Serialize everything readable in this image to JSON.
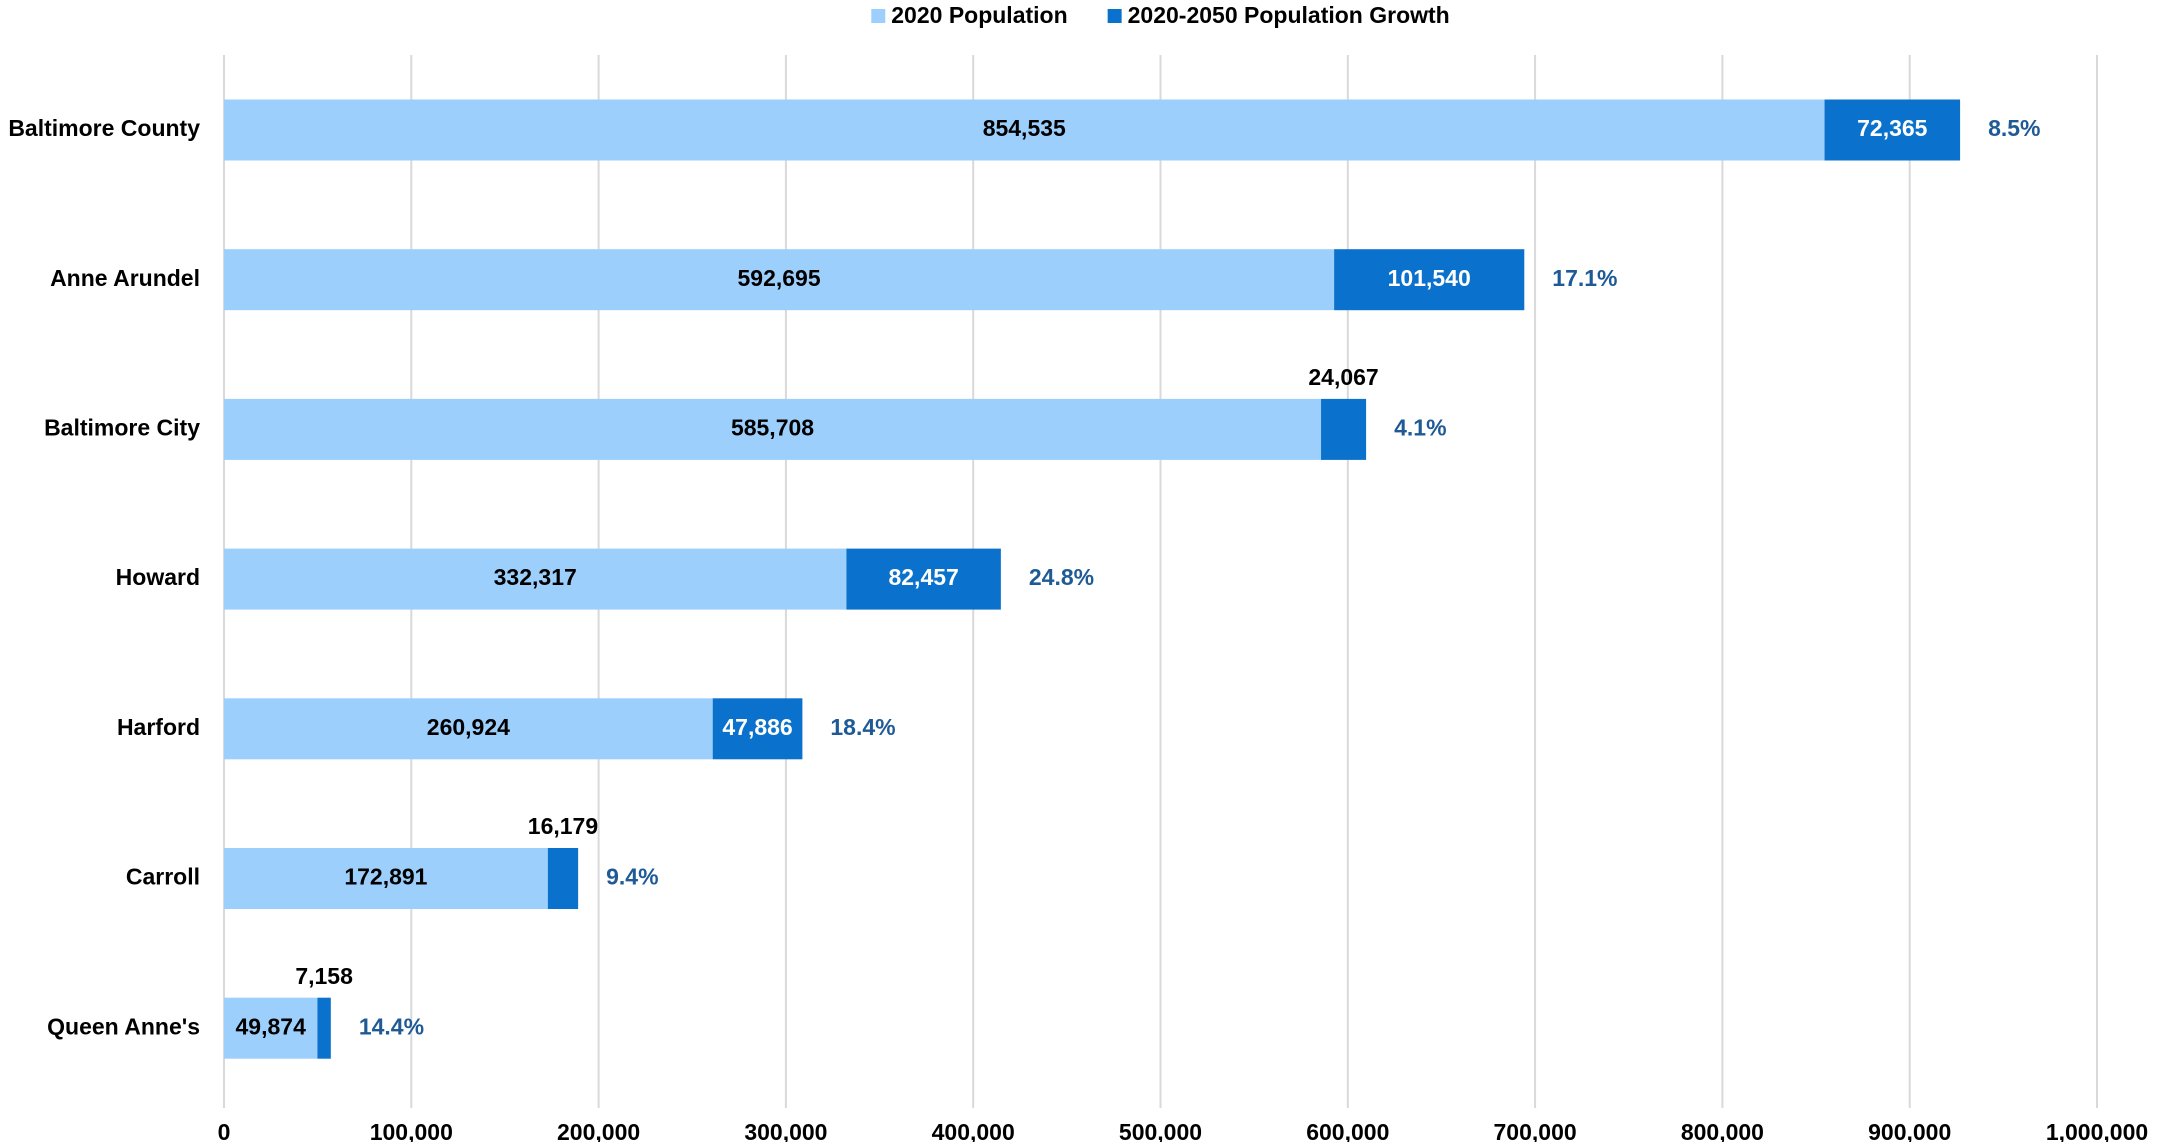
{
  "chart_data": {
    "type": "stacked-barh",
    "categories": [
      "Baltimore County",
      "Anne Arundel",
      "Baltimore City",
      "Howard",
      "Harford",
      "Carroll",
      "Queen Anne's"
    ],
    "series": [
      {
        "name": "2020 Population",
        "color": "#9dcffc",
        "values": [
          854535,
          592695,
          585708,
          332317,
          260924,
          172891,
          49874
        ],
        "value_labels": [
          "854,535",
          "592,695",
          "585,708",
          "332,317",
          "260,924",
          "172,891",
          "49,874"
        ]
      },
      {
        "name": "2020-2050 Population Growth",
        "color": "#0a72cc",
        "values": [
          72365,
          101540,
          24067,
          82457,
          47886,
          16179,
          7158
        ],
        "value_labels": [
          "72,365",
          "101,540",
          "24,067",
          "82,457",
          "47,886",
          "16,179",
          "7,158"
        ]
      }
    ],
    "annotations": [
      {
        "value": 8.5,
        "label": "8.5%"
      },
      {
        "value": 17.1,
        "label": "17.1%"
      },
      {
        "value": 4.1,
        "label": "4.1%"
      },
      {
        "value": 24.8,
        "label": "24.8%"
      },
      {
        "value": 18.4,
        "label": "18.4%"
      },
      {
        "value": 9.4,
        "label": "9.4%"
      },
      {
        "value": 14.4,
        "label": "14.4%"
      }
    ],
    "xlim": [
      0,
      1000000
    ],
    "xticks": [
      0,
      {
        "value": 100000,
        "label": "100,000"
      },
      {
        "value": 200000,
        "label": "200,000"
      },
      {
        "value": 300000,
        "label": "300,000"
      },
      {
        "value": 400000,
        "label": "400,000"
      },
      {
        "value": 500000,
        "label": "500,000"
      },
      {
        "value": 600000,
        "label": "600,000"
      },
      {
        "value": 700000,
        "label": "700,000"
      },
      {
        "value": 800000,
        "label": "800,000"
      },
      {
        "value": 900000,
        "label": "900,000"
      },
      {
        "value": 1000000,
        "label": "1,000,000"
      }
    ],
    "grid": true,
    "legend": "top"
  }
}
